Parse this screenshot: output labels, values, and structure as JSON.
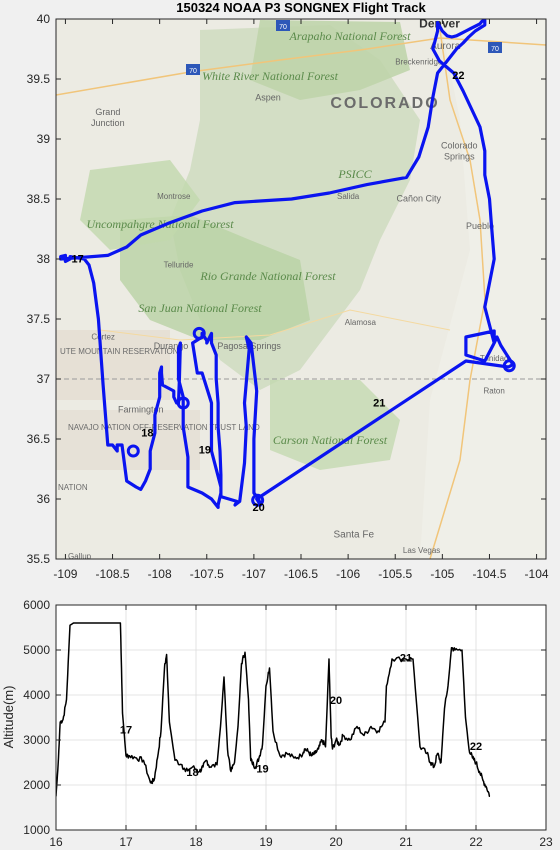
{
  "chart_data": [
    {
      "type": "line",
      "title": "150324 NOAA P3 SONGNEX Flight Track",
      "xlim": [
        -109.1,
        -103.9
      ],
      "ylim": [
        35.5,
        40
      ],
      "xticks": [
        -109,
        -108.5,
        -108,
        -107.5,
        -107,
        -106.5,
        -106,
        -105.5,
        -105,
        -104.5,
        -104
      ],
      "xtick_labels": [
        "-109",
        "-108.5",
        "-108",
        "-107.5",
        "-107",
        "-106.5",
        "-106",
        "-105.5",
        "-105",
        "-104.5",
        "-104"
      ],
      "yticks": [
        35.5,
        36,
        36.5,
        37,
        37.5,
        38,
        38.5,
        39,
        39.5,
        40
      ],
      "ytick_labels": [
        "35.5",
        "36",
        "36.5",
        "37",
        "37.5",
        "38",
        "38.5",
        "39",
        "39.5",
        "40"
      ],
      "basemap": {
        "places": [
          "Denver",
          "Aurora",
          "Breckenridge",
          "Grand Junction",
          "Aspen",
          "Colorado Springs",
          "Montrose",
          "Salida",
          "Cañon City",
          "Pueblo",
          "Telluride",
          "Cortez",
          "Durango",
          "Pagosa Springs",
          "Alamosa",
          "Trinidad",
          "Farmington",
          "Raton",
          "Santa Fe",
          "Las Vegas",
          "Gallup"
        ],
        "regions": [
          "COLORADO",
          "Arapaho National Forest",
          "White River National Forest",
          "Uncompahgre National Forest",
          "Rio Grande National Forest",
          "San Juan National Forest",
          "Carson National Forest",
          "PSICC",
          "UTE MOUNTAIN RESERVATION",
          "NAVAJO NATION OFF-RESERVATION TRUST LAND",
          "NATION"
        ],
        "highways": [
          "70",
          "70",
          "70"
        ]
      },
      "series": [
        {
          "color": "#0a14f0",
          "x": [
            -105.05,
            -105.05,
            -105.1,
            -105.03,
            -104.88,
            -104.78,
            -104.6,
            -104.55,
            -104.55,
            -104.5,
            -104.48,
            -104.45,
            -104.5,
            -104.55,
            -104.5,
            -104.45,
            -104.45,
            -104.75,
            -104.75,
            -104.55,
            -104.45,
            -104.42,
            -104.38,
            -104.25,
            -104.3,
            -104.75,
            -106.97,
            -106.93,
            -106.95,
            -107.0,
            -107.0,
            -106.97,
            -107.03,
            -107.08,
            -107.05,
            -107.1,
            -107.08,
            -107.1,
            -107.15,
            -107.2,
            -107.18,
            -107.35,
            -107.35,
            -107.45,
            -107.45,
            -107.55,
            -107.6,
            -107.65,
            -107.55,
            -107.55,
            -107.5,
            -107.5,
            -107.45,
            -107.45,
            -107.4,
            -107.4,
            -107.38,
            -107.38,
            -107.36,
            -107.35,
            -107.35,
            -107.38,
            -107.38,
            -107.45,
            -107.55,
            -107.7,
            -107.7,
            -107.75,
            -107.75,
            -107.8,
            -107.8,
            -107.78,
            -107.79,
            -107.8,
            -107.82,
            -107.85,
            -107.85,
            -107.97,
            -107.98,
            -107.98,
            -108.0,
            -108.0,
            -108.05,
            -108.05,
            -108.1,
            -108.1,
            -108.15,
            -108.2,
            -108.25,
            -108.35,
            -108.4,
            -108.4,
            -108.45,
            -108.45,
            -108.5,
            -108.5,
            -108.55,
            -108.6,
            -108.65,
            -108.7,
            -108.75,
            -108.8,
            -108.95,
            -108.95,
            -109.0,
            -109.0,
            -109.05,
            -109.05,
            -108.55,
            -108.35,
            -108.2,
            -107.9,
            -107.55,
            -107.2,
            -106.6,
            -106.2,
            -105.8,
            -105.38,
            -105.25,
            -105.15,
            -105.1,
            -105.05,
            -104.95,
            -104.9,
            -104.85,
            -104.78,
            -104.72,
            -104.65,
            -104.55,
            -104.55,
            -104.58,
            -104.6,
            -104.65,
            -104.7,
            -104.75,
            -104.8,
            -104.85,
            -104.9,
            -104.95,
            -105.0,
            -105.05
          ],
          "y": [
            39.97,
            39.9,
            39.75,
            39.65,
            39.55,
            39.4,
            39.1,
            38.9,
            38.7,
            38.5,
            38.3,
            38.0,
            37.8,
            37.6,
            37.45,
            37.3,
            37.4,
            37.35,
            37.2,
            37.15,
            37.3,
            37.35,
            37.28,
            37.12,
            37.1,
            37.15,
            36.0,
            35.95,
            36.0,
            36.05,
            36.5,
            36.9,
            37.3,
            37.35,
            37.25,
            36.8,
            36.6,
            36.3,
            35.98,
            35.95,
            35.98,
            36.02,
            36.1,
            36.4,
            36.8,
            37.05,
            37.05,
            37.3,
            37.35,
            37.38,
            37.32,
            37.3,
            37.38,
            37.3,
            37.2,
            37.0,
            36.8,
            36.6,
            36.4,
            36.2,
            36.05,
            35.95,
            35.93,
            36.0,
            36.05,
            36.1,
            36.35,
            36.6,
            36.85,
            37.0,
            37.25,
            37.3,
            37.0,
            36.8,
            36.8,
            36.85,
            36.9,
            36.95,
            37.05,
            37.1,
            37.05,
            36.85,
            36.7,
            36.55,
            36.4,
            36.25,
            36.15,
            36.08,
            36.1,
            36.15,
            36.45,
            36.45,
            36.45,
            36.4,
            36.45,
            36.45,
            36.45,
            36.95,
            37.5,
            37.8,
            37.95,
            38.0,
            38.02,
            38.0,
            37.98,
            38.03,
            38.02,
            38.0,
            38.03,
            38.1,
            38.2,
            38.3,
            38.4,
            38.47,
            38.5,
            38.55,
            38.62,
            38.68,
            38.85,
            39.1,
            39.35,
            39.55,
            39.65,
            39.7,
            39.75,
            39.8,
            39.85,
            39.9,
            39.95,
            39.99,
            39.98,
            39.96,
            39.94,
            39.92,
            39.9,
            39.88,
            39.86,
            39.85,
            39.86,
            39.9,
            39.97
          ]
        }
      ],
      "annotations": [
        {
          "text": "17",
          "x": -108.87,
          "y": 37.97
        },
        {
          "text": "18",
          "x": -108.13,
          "y": 36.52
        },
        {
          "text": "19",
          "x": -107.52,
          "y": 36.38
        },
        {
          "text": "20",
          "x": -106.95,
          "y": 35.9
        },
        {
          "text": "21",
          "x": -105.67,
          "y": 36.77
        },
        {
          "text": "22",
          "x": -104.83,
          "y": 39.5
        }
      ]
    },
    {
      "type": "line",
      "title": "",
      "xlabel": "",
      "ylabel": "Altitude(m)",
      "xlim": [
        16,
        23
      ],
      "ylim": [
        1000,
        6000
      ],
      "xticks": [
        16,
        17,
        18,
        19,
        20,
        21,
        22,
        23
      ],
      "xtick_labels": [
        "16",
        "17",
        "18",
        "19",
        "20",
        "21",
        "22",
        "23"
      ],
      "yticks": [
        1000,
        2000,
        3000,
        4000,
        5000,
        6000
      ],
      "ytick_labels": [
        "1000",
        "2000",
        "3000",
        "4000",
        "5000",
        "6000"
      ],
      "series": [
        {
          "color": "#000000",
          "x": [
            16.0,
            16.03,
            16.06,
            16.1,
            16.15,
            16.2,
            16.25,
            16.3,
            16.35,
            16.5,
            16.7,
            16.85,
            16.92,
            16.95,
            17.0,
            17.05,
            17.15,
            17.25,
            17.35,
            17.4,
            17.45,
            17.5,
            17.55,
            17.58,
            17.62,
            17.7,
            17.8,
            17.85,
            17.95,
            18.05,
            18.1,
            18.15,
            18.2,
            18.3,
            18.35,
            18.4,
            18.45,
            18.5,
            18.55,
            18.6,
            18.65,
            18.7,
            18.75,
            18.78,
            18.8,
            18.85,
            18.9,
            18.95,
            19.0,
            19.05,
            19.1,
            19.2,
            19.3,
            19.4,
            19.5,
            19.55,
            19.6,
            19.65,
            19.7,
            19.75,
            19.8,
            19.85,
            19.9,
            19.93,
            19.95,
            20.0,
            20.05,
            20.1,
            20.2,
            20.3,
            20.4,
            20.5,
            20.6,
            20.7,
            20.72,
            20.8,
            21.0,
            21.1,
            21.2,
            21.3,
            21.35,
            21.4,
            21.45,
            21.5,
            21.55,
            21.6,
            21.65,
            21.7,
            21.8,
            21.85,
            21.9,
            21.95,
            22.0,
            22.05,
            22.1,
            22.15,
            22.2
          ],
          "y": [
            1750,
            2450,
            3400,
            3450,
            3900,
            5550,
            5600,
            5600,
            5600,
            5600,
            5600,
            5600,
            5600,
            3600,
            2650,
            2650,
            2600,
            2550,
            2050,
            2100,
            2600,
            3200,
            4600,
            4900,
            3400,
            2550,
            2450,
            2300,
            2400,
            2300,
            2400,
            2550,
            2400,
            2450,
            3300,
            4400,
            2800,
            2300,
            2500,
            3300,
            4700,
            4950,
            3900,
            2600,
            2500,
            2400,
            2600,
            2900,
            4200,
            4600,
            3200,
            2650,
            2700,
            2600,
            2650,
            2800,
            2750,
            2650,
            2700,
            2800,
            3000,
            2850,
            4800,
            3100,
            2800,
            3000,
            2900,
            3100,
            3000,
            3300,
            3100,
            3300,
            3200,
            3400,
            4200,
            4800,
            4800,
            4800,
            2850,
            2700,
            2500,
            2400,
            2700,
            2500,
            3700,
            4200,
            5050,
            5000,
            5000,
            3500,
            2800,
            2600,
            2500,
            2300,
            2100,
            1950,
            1750
          ]
        }
      ],
      "annotations": [
        {
          "text": "17",
          "x": 17.0,
          "y": 3150
        },
        {
          "text": "18",
          "x": 17.95,
          "y": 2200
        },
        {
          "text": "19",
          "x": 18.95,
          "y": 2280
        },
        {
          "text": "20",
          "x": 20.0,
          "y": 3800
        },
        {
          "text": "21",
          "x": 21.0,
          "y": 4750
        },
        {
          "text": "22",
          "x": 22.0,
          "y": 2780
        }
      ]
    }
  ]
}
